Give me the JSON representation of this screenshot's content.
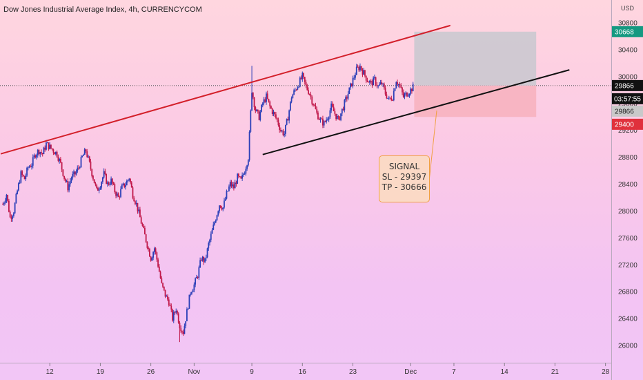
{
  "header": {
    "title": "Dow Jones Industrial Average Index, 4h, CURRENCYCOM",
    "currency": "USD"
  },
  "colors": {
    "up_candle": "#2b3fb8",
    "down_candle": "#c0184a",
    "resistance_line": "#d31f2a",
    "support_line": "#111111",
    "target_zone": "#c8c8cf",
    "stop_zone": "#f7b2bf",
    "target_tag": "#159981",
    "price_tag": "#111111",
    "entry_tag": "#c9c9c9",
    "stop_tag": "#e0313c",
    "callout_border": "#f0a040"
  },
  "price_tags": {
    "target": "30668",
    "current": "29866",
    "countdown": "03:57:55",
    "entry": "29866",
    "stop": "29400"
  },
  "signal": {
    "line1": "SIGNAL",
    "line2": "SL - 29397",
    "line3": "TP - 30666"
  },
  "chart_data": {
    "type": "candlestick",
    "title": "Dow Jones Industrial Average Index, 4h, CURRENCYCOM",
    "ylabel": "USD",
    "ylim": [
      25800,
      30960
    ],
    "y_ticks": [
      26000,
      26400,
      26800,
      27200,
      27600,
      28000,
      28400,
      28800,
      29200,
      29600,
      30000,
      30400,
      30800
    ],
    "x_ticks": [
      {
        "label": "12",
        "t": 1.5
      },
      {
        "label": "19",
        "t": 8.5
      },
      {
        "label": "26",
        "t": 15.5
      },
      {
        "label": "Nov",
        "t": 21.5
      },
      {
        "label": "9",
        "t": 29.5
      },
      {
        "label": "16",
        "t": 36.5
      },
      {
        "label": "23",
        "t": 43.5
      },
      {
        "label": "Dec",
        "t": 51.5
      },
      {
        "label": "7",
        "t": 57.5
      },
      {
        "label": "14",
        "t": 64.5
      },
      {
        "label": "21",
        "t": 71.5
      },
      {
        "label": "28",
        "t": 78.5
      }
    ],
    "x_range_days": [
      -5.4,
      79.3
    ],
    "closes": [
      [
        -5.0,
        28100
      ],
      [
        -4.5,
        28250
      ],
      [
        -4.0,
        27900
      ],
      [
        -3.5,
        28000
      ],
      [
        -3.0,
        28300
      ],
      [
        -2.5,
        28550
      ],
      [
        -2.0,
        28480
      ],
      [
        -1.5,
        28650
      ],
      [
        -1.0,
        28700
      ],
      [
        -0.5,
        28850
      ],
      [
        0.0,
        28900
      ],
      [
        0.5,
        28850
      ],
      [
        1.0,
        29000
      ],
      [
        1.5,
        28950
      ],
      [
        2.0,
        28900
      ],
      [
        2.5,
        28850
      ],
      [
        3.0,
        28700
      ],
      [
        3.5,
        28500
      ],
      [
        4.0,
        28350
      ],
      [
        4.5,
        28500
      ],
      [
        5.0,
        28550
      ],
      [
        5.5,
        28650
      ],
      [
        6.0,
        28800
      ],
      [
        6.5,
        28900
      ],
      [
        7.0,
        28700
      ],
      [
        7.5,
        28500
      ],
      [
        8.0,
        28300
      ],
      [
        8.5,
        28400
      ],
      [
        9.0,
        28550
      ],
      [
        9.5,
        28400
      ],
      [
        10.0,
        28450
      ],
      [
        10.5,
        28300
      ],
      [
        11.0,
        28200
      ],
      [
        11.5,
        28350
      ],
      [
        12.0,
        28400
      ],
      [
        12.5,
        28500
      ],
      [
        13.0,
        28250
      ],
      [
        13.5,
        28100
      ],
      [
        14.0,
        27900
      ],
      [
        14.5,
        27700
      ],
      [
        15.0,
        27500
      ],
      [
        15.5,
        27300
      ],
      [
        16.0,
        27450
      ],
      [
        16.5,
        27200
      ],
      [
        17.0,
        26900
      ],
      [
        17.5,
        26750
      ],
      [
        18.0,
        26650
      ],
      [
        18.5,
        26400
      ],
      [
        19.0,
        26550
      ],
      [
        19.5,
        26300
      ],
      [
        20.0,
        26200
      ],
      [
        20.5,
        26500
      ],
      [
        21.0,
        26800
      ],
      [
        21.5,
        26900
      ],
      [
        22.0,
        27050
      ],
      [
        22.5,
        27300
      ],
      [
        23.0,
        27250
      ],
      [
        23.5,
        27500
      ],
      [
        24.0,
        27700
      ],
      [
        24.5,
        27900
      ],
      [
        25.0,
        28100
      ],
      [
        25.5,
        28050
      ],
      [
        26.0,
        28250
      ],
      [
        26.5,
        28400
      ],
      [
        27.0,
        28350
      ],
      [
        27.5,
        28500
      ],
      [
        28.0,
        28450
      ],
      [
        28.5,
        28600
      ],
      [
        29.0,
        28800
      ],
      [
        29.5,
        29800
      ],
      [
        30.0,
        29500
      ],
      [
        30.5,
        29400
      ],
      [
        31.0,
        29600
      ],
      [
        31.5,
        29700
      ],
      [
        32.0,
        29550
      ],
      [
        32.5,
        29450
      ],
      [
        33.0,
        29350
      ],
      [
        33.5,
        29200
      ],
      [
        34.0,
        29150
      ],
      [
        34.5,
        29400
      ],
      [
        35.0,
        29700
      ],
      [
        35.5,
        29800
      ],
      [
        36.0,
        29900
      ],
      [
        36.5,
        30000
      ],
      [
        37.0,
        29850
      ],
      [
        37.5,
        29750
      ],
      [
        38.0,
        29600
      ],
      [
        38.5,
        29450
      ],
      [
        39.0,
        29350
      ],
      [
        39.5,
        29300
      ],
      [
        40.0,
        29400
      ],
      [
        40.5,
        29550
      ],
      [
        41.0,
        29450
      ],
      [
        41.5,
        29350
      ],
      [
        42.0,
        29500
      ],
      [
        42.5,
        29650
      ],
      [
        43.0,
        29800
      ],
      [
        43.5,
        29950
      ],
      [
        44.0,
        30100
      ],
      [
        44.5,
        30150
      ],
      [
        45.0,
        30050
      ],
      [
        45.5,
        29950
      ],
      [
        46.0,
        29900
      ],
      [
        46.5,
        29950
      ],
      [
        47.0,
        29850
      ],
      [
        47.5,
        29900
      ],
      [
        48.0,
        29750
      ],
      [
        48.5,
        29650
      ],
      [
        49.0,
        29700
      ],
      [
        49.5,
        29950
      ],
      [
        50.0,
        29850
      ],
      [
        50.5,
        29700
      ],
      [
        51.0,
        29750
      ],
      [
        51.5,
        29800
      ],
      [
        52.0,
        29866
      ]
    ],
    "extremes": {
      "high": 30160,
      "low": 26050
    },
    "trendlines": [
      {
        "name": "resistance",
        "from": [
          -5.3,
          28850
        ],
        "to": [
          57.0,
          30760
        ]
      },
      {
        "name": "support",
        "from": [
          31.0,
          28840
        ],
        "to": [
          73.5,
          30100
        ]
      }
    ],
    "levels": {
      "target": 30668,
      "entry": 29866,
      "stop": 29400
    },
    "position_zone": {
      "from_t": 52.0,
      "to_t": 68.9
    }
  }
}
